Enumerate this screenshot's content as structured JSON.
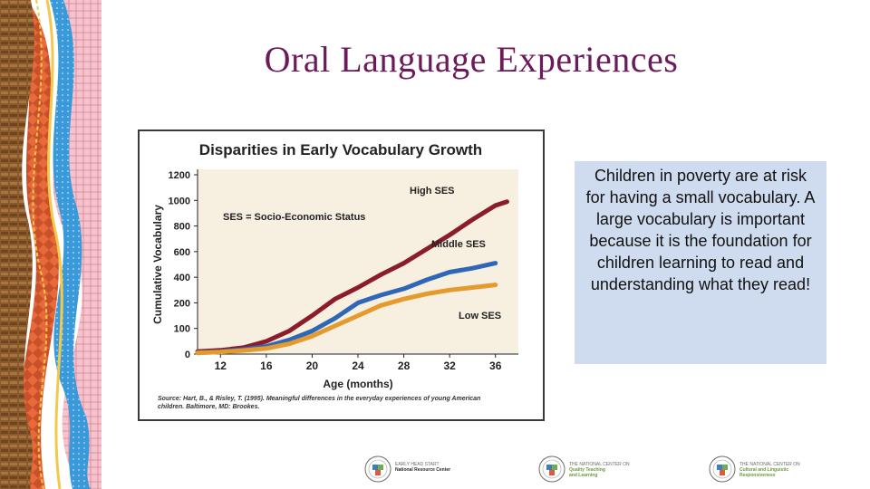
{
  "slide": {
    "title": "Oral Language Experiences",
    "callout_text": "Children in poverty are at risk for having a small vocabulary. A large vocabulary is important because it is the foundation for children learning to read and understanding what they read!",
    "colors": {
      "title": "#6b1b5a",
      "callout_bg": "#cfdbef",
      "deco_brown": "#8a5a2b",
      "deco_orange": "#e8693a",
      "deco_blue": "#3a9ad9",
      "deco_pink": "#e9a2b0",
      "deco_yellow": "#f2c94c"
    }
  },
  "chart_data": {
    "type": "line",
    "title": "Disparities in Early Vocabulary Growth",
    "xlabel": "Age (months)",
    "ylabel": "Cumulative Vocabulary",
    "x_ticks": [
      12,
      16,
      20,
      24,
      28,
      32,
      36
    ],
    "y_ticks": [
      0,
      100,
      200,
      400,
      600,
      800,
      1000,
      1200
    ],
    "y_tick_labels": [
      "0",
      "100",
      "200",
      "400",
      "600",
      "800",
      "1000",
      "1200"
    ],
    "xlim": [
      10,
      38
    ],
    "ylim": [
      0,
      1200
    ],
    "grid": false,
    "note": "SES = Socio-Economic Status",
    "source": "Source: Hart, B., & Risley, T. (1995). Meaningful differences in the everyday experiences of young American children. Baltimore, MD: Brookes.",
    "series": [
      {
        "name": "High SES",
        "color": "#8b1c2a",
        "x": [
          10,
          12,
          14,
          16,
          18,
          20,
          22,
          24,
          26,
          28,
          30,
          32,
          34,
          36,
          37
        ],
        "values": [
          10,
          15,
          25,
          50,
          90,
          150,
          230,
          320,
          420,
          510,
          620,
          730,
          850,
          960,
          990
        ]
      },
      {
        "name": "Middle SES",
        "color": "#2f67b8",
        "x": [
          10,
          12,
          14,
          16,
          18,
          20,
          22,
          24,
          26,
          28,
          30,
          32,
          34,
          36
        ],
        "values": [
          5,
          10,
          18,
          30,
          55,
          90,
          140,
          200,
          260,
          310,
          380,
          440,
          470,
          510
        ]
      },
      {
        "name": "Low SES",
        "color": "#e59a2e",
        "x": [
          10,
          12,
          14,
          16,
          18,
          20,
          22,
          24,
          26,
          28,
          30,
          32,
          34,
          36
        ],
        "values": [
          5,
          8,
          14,
          22,
          40,
          70,
          110,
          150,
          190,
          230,
          270,
          300,
          320,
          340
        ]
      }
    ]
  }
}
